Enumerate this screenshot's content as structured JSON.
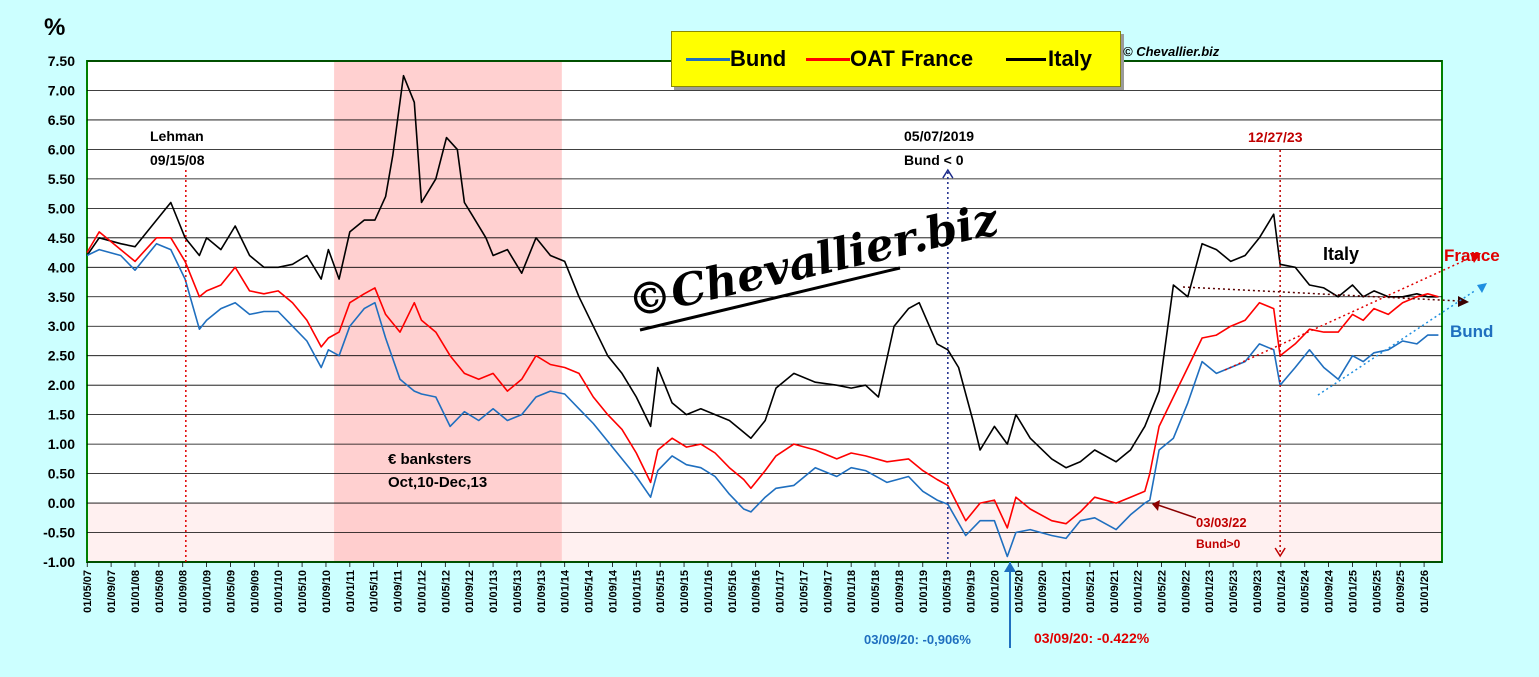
{
  "y_unit": "%",
  "copyright": "© Chevallier.biz",
  "watermark": "©Chevallier.biz",
  "colors": {
    "bund": "#1f6fbf",
    "oat": "#ff0000",
    "italy": "#000000",
    "plot_bg": "#ffffff",
    "grid": "#000000",
    "page_bg": "#ccffff",
    "shade": "#ffc8c8",
    "legend_bg": "#ffff00"
  },
  "legend": [
    {
      "label": "Bund",
      "color": "#1f6fbf"
    },
    {
      "label": "OAT France",
      "color": "#ff0000"
    },
    {
      "label": "Italy",
      "color": "#000000"
    }
  ],
  "annotations": {
    "lehman_title": "Lehman",
    "lehman_date": "09/15/08",
    "banksters_title": "€ banksters",
    "banksters_dates": "Oct,10-Dec,13",
    "bund_neg_date": "05/07/2019",
    "bund_neg_text": "Bund < 0",
    "date_2023": "12/27/23",
    "italy_label": "Italy",
    "france_label": "France",
    "bund_label": "Bund",
    "bund_pos_date": "03/03/22",
    "bund_pos_text": "Bund>0",
    "bund_low": "03/09/20: -0,906%",
    "oat_low": "03/09/20:  -0.422%"
  },
  "chart_data": {
    "type": "line",
    "ylabel": "%",
    "ylim": [
      -1.0,
      7.5
    ],
    "y_ticks": [
      "7.50",
      "7.00",
      "6.50",
      "6.00",
      "5.50",
      "5.00",
      "4.50",
      "4.00",
      "3.50",
      "3.00",
      "2.50",
      "2.00",
      "1.50",
      "1.00",
      "0.50",
      "0.00",
      "-0.50",
      "-1.00"
    ],
    "x_ticks": [
      "01/05/07",
      "01/09/07",
      "01/01/08",
      "01/05/08",
      "01/09/08",
      "01/01/09",
      "01/05/09",
      "01/09/09",
      "01/01/10",
      "01/05/10",
      "01/09/10",
      "01/01/11",
      "01/05/11",
      "01/09/11",
      "01/01/12",
      "01/05/12",
      "01/09/12",
      "01/01/13",
      "01/05/13",
      "01/09/13",
      "01/01/14",
      "01/05/14",
      "01/09/14",
      "01/01/15",
      "01/05/15",
      "01/09/15",
      "01/01/16",
      "01/05/16",
      "01/09/16",
      "01/01/17",
      "01/05/17",
      "01/09/17",
      "01/01/18",
      "01/05/18",
      "01/09/18",
      "01/01/19",
      "01/05/19",
      "01/09/19",
      "01/01/20",
      "01/05/20",
      "01/09/20",
      "01/01/21",
      "01/05/21",
      "01/09/21",
      "01/01/22",
      "01/05/22",
      "01/09/22",
      "01/01/23",
      "01/05/23",
      "01/09/23",
      "01/01/24",
      "01/05/24",
      "01/09/24",
      "01/01/25",
      "01/05/25",
      "01/09/25",
      "01/01/26"
    ],
    "x_start": 2007.33,
    "x_end": 2026.25,
    "grid": "horizontal",
    "shaded_period": [
      2010.78,
      2013.96
    ],
    "series": [
      {
        "name": "Bund",
        "color": "#1f6fbf",
        "x": [
          2007.33,
          2007.5,
          2007.8,
          2008.0,
          2008.3,
          2008.5,
          2008.7,
          2008.9,
          2009.0,
          2009.2,
          2009.4,
          2009.6,
          2009.8,
          2010.0,
          2010.2,
          2010.4,
          2010.6,
          2010.7,
          2010.85,
          2011.0,
          2011.2,
          2011.35,
          2011.5,
          2011.7,
          2011.9,
          2012.0,
          2012.2,
          2012.4,
          2012.6,
          2012.8,
          2013.0,
          2013.2,
          2013.4,
          2013.6,
          2013.8,
          2014.0,
          2014.2,
          2014.4,
          2014.6,
          2014.8,
          2015.0,
          2015.2,
          2015.3,
          2015.5,
          2015.7,
          2015.9,
          2016.1,
          2016.3,
          2016.5,
          2016.6,
          2016.8,
          2016.95,
          2017.2,
          2017.5,
          2017.8,
          2018.0,
          2018.2,
          2018.5,
          2018.8,
          2019.0,
          2019.2,
          2019.35,
          2019.6,
          2019.8,
          2020.0,
          2020.18,
          2020.3,
          2020.5,
          2020.8,
          2021.0,
          2021.2,
          2021.4,
          2021.7,
          2021.9,
          2022.1,
          2022.17,
          2022.3,
          2022.5,
          2022.7,
          2022.9,
          2023.1,
          2023.3,
          2023.5,
          2023.7,
          2023.9,
          2023.99,
          2024.2,
          2024.4,
          2024.6,
          2024.8,
          2025.0,
          2025.15,
          2025.3,
          2025.5,
          2025.7,
          2025.9,
          2026.05,
          2026.2
        ],
        "values": [
          4.2,
          4.3,
          4.2,
          3.95,
          4.4,
          4.3,
          3.8,
          2.95,
          3.1,
          3.3,
          3.4,
          3.2,
          3.25,
          3.25,
          3.0,
          2.75,
          2.3,
          2.6,
          2.5,
          3.0,
          3.3,
          3.4,
          2.8,
          2.1,
          1.9,
          1.85,
          1.8,
          1.3,
          1.55,
          1.4,
          1.6,
          1.4,
          1.5,
          1.8,
          1.9,
          1.85,
          1.6,
          1.35,
          1.05,
          0.75,
          0.45,
          0.1,
          0.55,
          0.8,
          0.65,
          0.6,
          0.45,
          0.15,
          -0.1,
          -0.15,
          0.1,
          0.25,
          0.3,
          0.6,
          0.45,
          0.6,
          0.55,
          0.35,
          0.45,
          0.2,
          0.05,
          -0.02,
          -0.55,
          -0.3,
          -0.3,
          -0.906,
          -0.5,
          -0.45,
          -0.55,
          -0.6,
          -0.3,
          -0.25,
          -0.45,
          -0.2,
          0.0,
          0.05,
          0.9,
          1.1,
          1.7,
          2.4,
          2.2,
          2.3,
          2.4,
          2.7,
          2.6,
          2.0,
          2.3,
          2.6,
          2.3,
          2.1,
          2.5,
          2.4,
          2.55,
          2.6,
          2.75,
          2.7,
          2.85,
          2.85
        ]
      },
      {
        "name": "OAT France",
        "color": "#ff0000",
        "x": [
          2007.33,
          2007.5,
          2007.8,
          2008.0,
          2008.3,
          2008.5,
          2008.7,
          2008.9,
          2009.0,
          2009.2,
          2009.4,
          2009.6,
          2009.8,
          2010.0,
          2010.2,
          2010.4,
          2010.6,
          2010.7,
          2010.85,
          2011.0,
          2011.2,
          2011.35,
          2011.5,
          2011.7,
          2011.9,
          2012.0,
          2012.2,
          2012.4,
          2012.6,
          2012.8,
          2013.0,
          2013.2,
          2013.4,
          2013.6,
          2013.8,
          2014.0,
          2014.2,
          2014.4,
          2014.6,
          2014.8,
          2015.0,
          2015.2,
          2015.3,
          2015.5,
          2015.7,
          2015.9,
          2016.1,
          2016.3,
          2016.5,
          2016.6,
          2016.8,
          2016.95,
          2017.2,
          2017.5,
          2017.8,
          2018.0,
          2018.2,
          2018.5,
          2018.8,
          2019.0,
          2019.2,
          2019.35,
          2019.6,
          2019.8,
          2020.0,
          2020.18,
          2020.3,
          2020.5,
          2020.8,
          2021.0,
          2021.2,
          2021.4,
          2021.7,
          2021.9,
          2022.1,
          2022.17,
          2022.3,
          2022.5,
          2022.7,
          2022.9,
          2023.1,
          2023.3,
          2023.5,
          2023.7,
          2023.9,
          2023.99,
          2024.2,
          2024.4,
          2024.6,
          2024.8,
          2025.0,
          2025.15,
          2025.3,
          2025.5,
          2025.7,
          2025.9,
          2026.05,
          2026.2
        ],
        "values": [
          4.25,
          4.6,
          4.3,
          4.1,
          4.5,
          4.5,
          4.1,
          3.5,
          3.6,
          3.7,
          4.0,
          3.6,
          3.55,
          3.6,
          3.4,
          3.1,
          2.65,
          2.8,
          2.9,
          3.4,
          3.55,
          3.65,
          3.2,
          2.9,
          3.4,
          3.1,
          2.9,
          2.5,
          2.2,
          2.1,
          2.2,
          1.9,
          2.1,
          2.5,
          2.35,
          2.3,
          2.2,
          1.8,
          1.5,
          1.25,
          0.85,
          0.35,
          0.9,
          1.1,
          0.95,
          1.0,
          0.85,
          0.6,
          0.4,
          0.25,
          0.55,
          0.8,
          1.0,
          0.9,
          0.75,
          0.85,
          0.8,
          0.7,
          0.75,
          0.55,
          0.4,
          0.3,
          -0.3,
          0.0,
          0.05,
          -0.422,
          0.1,
          -0.1,
          -0.3,
          -0.35,
          -0.15,
          0.1,
          0.0,
          0.1,
          0.2,
          0.5,
          1.3,
          1.8,
          2.3,
          2.8,
          2.85,
          3.0,
          3.1,
          3.4,
          3.3,
          2.5,
          2.7,
          2.95,
          2.9,
          2.9,
          3.2,
          3.1,
          3.3,
          3.2,
          3.4,
          3.5,
          3.55,
          3.5
        ]
      },
      {
        "name": "Italy",
        "color": "#000000",
        "x": [
          2007.33,
          2007.5,
          2007.8,
          2008.0,
          2008.3,
          2008.5,
          2008.7,
          2008.9,
          2009.0,
          2009.2,
          2009.4,
          2009.6,
          2009.8,
          2010.0,
          2010.2,
          2010.4,
          2010.6,
          2010.7,
          2010.85,
          2011.0,
          2011.2,
          2011.35,
          2011.5,
          2011.6,
          2011.75,
          2011.9,
          2012.0,
          2012.2,
          2012.35,
          2012.5,
          2012.6,
          2012.7,
          2012.9,
          2013.0,
          2013.2,
          2013.4,
          2013.6,
          2013.8,
          2014.0,
          2014.2,
          2014.4,
          2014.6,
          2014.8,
          2015.0,
          2015.2,
          2015.3,
          2015.5,
          2015.7,
          2015.9,
          2016.1,
          2016.3,
          2016.5,
          2016.6,
          2016.8,
          2016.95,
          2017.2,
          2017.5,
          2017.8,
          2018.0,
          2018.2,
          2018.38,
          2018.6,
          2018.8,
          2018.95,
          2019.2,
          2019.35,
          2019.5,
          2019.7,
          2019.8,
          2020.0,
          2020.18,
          2020.3,
          2020.5,
          2020.8,
          2021.0,
          2021.2,
          2021.4,
          2021.7,
          2021.9,
          2022.1,
          2022.3,
          2022.5,
          2022.7,
          2022.9,
          2023.1,
          2023.3,
          2023.5,
          2023.7,
          2023.9,
          2023.99,
          2024.2,
          2024.4,
          2024.6,
          2024.8,
          2025.0,
          2025.15,
          2025.3,
          2025.5,
          2025.7,
          2025.9,
          2026.05,
          2026.2
        ],
        "values": [
          4.2,
          4.5,
          4.4,
          4.35,
          4.8,
          5.1,
          4.5,
          4.2,
          4.5,
          4.3,
          4.7,
          4.2,
          4.0,
          4.0,
          4.05,
          4.2,
          3.8,
          4.3,
          3.8,
          4.6,
          4.8,
          4.8,
          5.2,
          5.9,
          7.25,
          6.8,
          5.1,
          5.5,
          6.2,
          6.0,
          5.1,
          4.9,
          4.5,
          4.2,
          4.3,
          3.9,
          4.5,
          4.2,
          4.1,
          3.5,
          3.0,
          2.5,
          2.2,
          1.8,
          1.3,
          2.3,
          1.7,
          1.5,
          1.6,
          1.5,
          1.4,
          1.2,
          1.1,
          1.4,
          1.95,
          2.2,
          2.05,
          2.0,
          1.95,
          2.0,
          1.8,
          3.0,
          3.3,
          3.4,
          2.7,
          2.6,
          2.3,
          1.4,
          0.9,
          1.3,
          1.0,
          1.5,
          1.1,
          0.75,
          0.6,
          0.7,
          0.9,
          0.7,
          0.9,
          1.3,
          1.9,
          3.7,
          3.5,
          4.4,
          4.3,
          4.1,
          4.2,
          4.5,
          4.9,
          4.05,
          4.0,
          3.7,
          3.65,
          3.5,
          3.7,
          3.5,
          3.6,
          3.5,
          3.5,
          3.55,
          3.5,
          3.5
        ]
      }
    ]
  }
}
